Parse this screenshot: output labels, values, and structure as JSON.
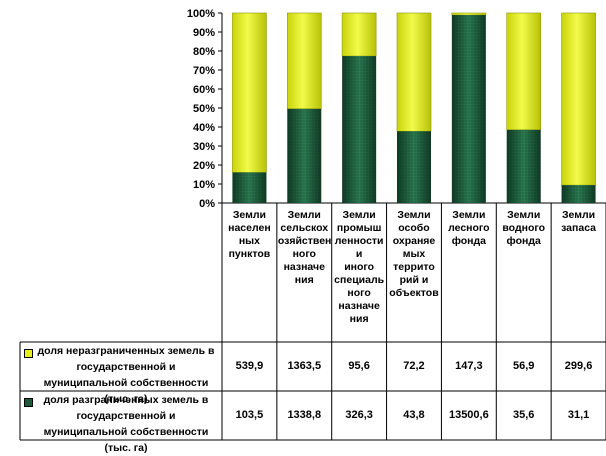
{
  "chart_data": {
    "type": "bar",
    "stacked": "percent",
    "categories": [
      "Земли\nнаселен\nных\nпунктов",
      "Земли\nсельскох\nозяйствен\nного\nназначе\nния",
      "Земли\nпромыш\nленности\nи\nиного\nспециаль\nного\nназначе\nния",
      "Земли\nособо\nохраняе\nмых\nтеррито\nрий и\nобъектов",
      "Земли\nлесного\nфонда",
      "Земли\nводного\nфонда",
      "Земли\nзапаса"
    ],
    "series": [
      {
        "name": "доля  неразграниченных земель в государственной и муниципальной собственности (тыс. га)",
        "values": [
          539.9,
          1363.5,
          95.6,
          72.2,
          147.3,
          56.9,
          299.6
        ],
        "display": [
          "539,9",
          "1363,5",
          "95,6",
          "72,2",
          "147,3",
          "56,9",
          "299,6"
        ],
        "color": "#e6f21a"
      },
      {
        "name": "доля разграниченных земель в государственной и муниципальной собственности (тыс. га)",
        "values": [
          103.5,
          1338.8,
          326.3,
          43.8,
          13500.6,
          35.6,
          31.1
        ],
        "display": [
          "103,5",
          "1338,8",
          "326,3",
          "43,8",
          "13500,6",
          "35,6",
          "31,1"
        ],
        "color": "#1e5a3a"
      }
    ],
    "y_ticks": [
      "0%",
      "10%",
      "20%",
      "30%",
      "40%",
      "50%",
      "60%",
      "70%",
      "80%",
      "90%",
      "100%"
    ],
    "ylim": [
      0,
      100
    ],
    "grid": false,
    "legend": "data-table"
  }
}
